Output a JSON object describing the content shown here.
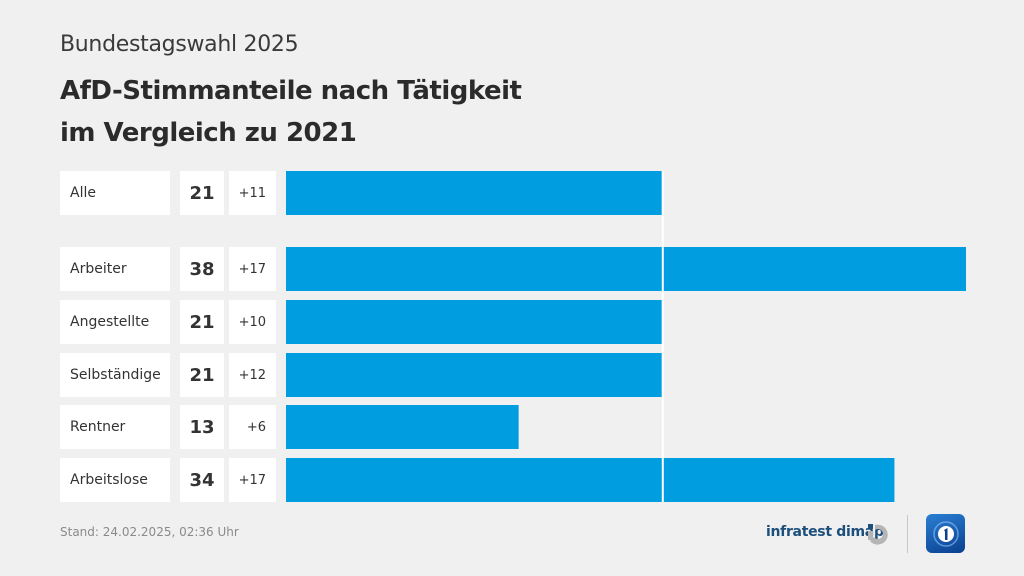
{
  "header": {
    "supertitle": "Bundestagswahl 2025",
    "title_line1": "AfD-Stimmanteile nach Tätigkeit",
    "title_line2": "im Vergleich zu 2021"
  },
  "colors": {
    "bar": "#009de0",
    "background": "#f0f0f0",
    "cell": "#ffffff"
  },
  "chart_data": {
    "type": "bar",
    "orientation": "horizontal",
    "title": "AfD-Stimmanteile nach Tätigkeit im Vergleich zu 2021",
    "subtitle": "Bundestagswahl 2025",
    "categories": [
      "Alle",
      "Arbeiter",
      "Angestellte",
      "Selbständige",
      "Rentner",
      "Arbeitslose"
    ],
    "values": [
      21,
      38,
      21,
      21,
      13,
      34
    ],
    "changes": [
      "+11",
      "+17",
      "+10",
      "+12",
      "+6",
      "+17"
    ],
    "reference_line": 21,
    "unit": "%",
    "xlim": [
      0,
      38
    ]
  },
  "footer": {
    "stand": "Stand:  24.02.2025, 02:36 Uhr",
    "brand": "infratest dimap",
    "brand_icon": "infratest-dimap-logo-icon",
    "broadcaster_icon": "tagesschau-logo-icon"
  }
}
